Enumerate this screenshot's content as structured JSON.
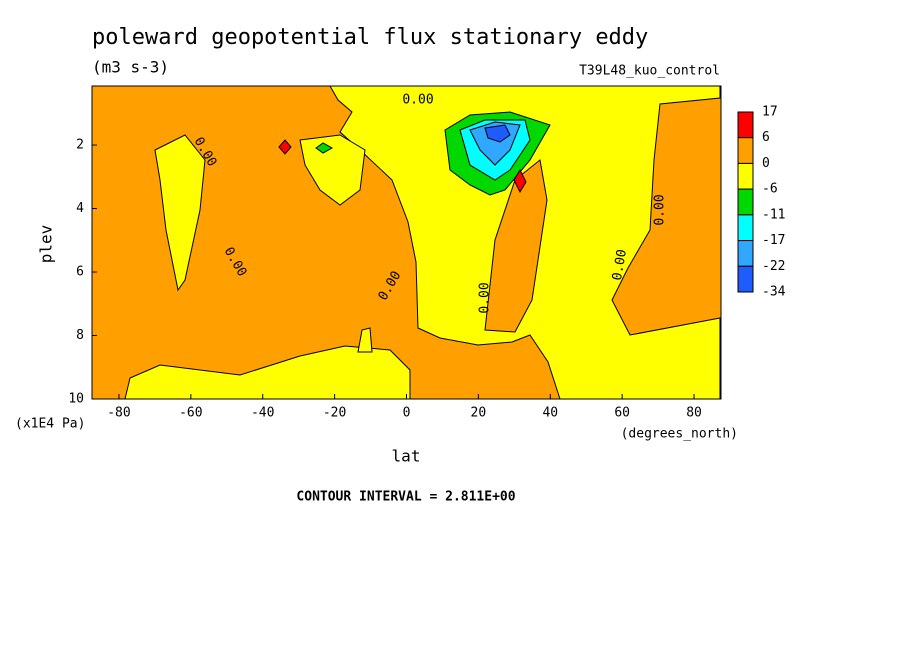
{
  "chart_data": {
    "type": "contour",
    "title": "poleward geopotential flux stationary eddy",
    "subtitle": "(m3 s-3)",
    "run_label": "T39L48_kuo_control",
    "xlabel": "lat",
    "ylabel": "plev",
    "x_units": "(degrees_north)",
    "y_units": "(x1E4 Pa)",
    "xlim": [
      -87.5,
      87.5
    ],
    "ylim": [
      0.14,
      10
    ],
    "xticks": [
      -80,
      -60,
      -40,
      -20,
      0,
      20,
      40,
      60,
      80
    ],
    "yticks": [
      2,
      4,
      6,
      8,
      10
    ],
    "levels": [
      17,
      6,
      0,
      -6,
      -11,
      -17,
      -22,
      -34
    ],
    "level_colors": [
      "#ff0000",
      "#ffa000",
      "#ffff00",
      "#00d800",
      "#00ffff",
      "#30a8ff",
      "#1e5cff"
    ],
    "contour_labels": [
      "0.00",
      "0.00",
      "0.00",
      "0.00",
      "0.00",
      "0.00",
      "0.00"
    ],
    "annotation": "CONTOUR INTERVAL = 2.811E+00"
  }
}
